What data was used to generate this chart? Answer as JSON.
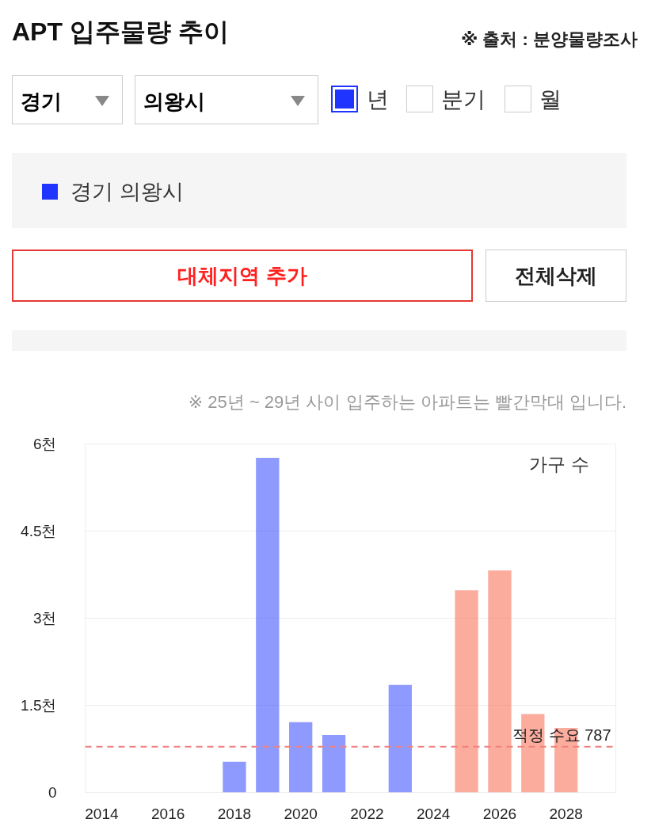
{
  "chart_data": {
    "type": "bar",
    "title": "APT 입주물량 추이",
    "annotations": [
      "※ 출처 : 분양물량조사",
      "경기",
      "의왕시",
      "년",
      "분기",
      "월",
      "대체지역 추가",
      "전체삭제",
      "※ 25년 ~ 29년 사이 입주하는 아파트는 빨간막대 입니다.",
      "가구 수"
    ],
    "series": [
      {
        "name": "경기 의왕시",
        "color": "#1f35ff",
        "x": [
          2018,
          2019,
          2020,
          2021,
          2023,
          2025,
          2026,
          2027,
          2028
        ],
        "values": [
          0.53,
          5.76,
          1.21,
          0.99,
          1.85,
          3.48,
          3.82,
          1.35,
          1.11
        ],
        "colors": [
          "#1f35ff",
          "#1f35ff",
          "#1f35ff",
          "#1f35ff",
          "#1f35ff",
          "#fa5a3c",
          "#fa5a3c",
          "#fa5a3c",
          "#fa5a3c"
        ]
      }
    ],
    "xlim": [
      2013.5,
      2029.5
    ],
    "xticks": [
      2014,
      2016,
      2018,
      2020,
      2022,
      2024,
      2026,
      2028
    ],
    "ylim": [
      0,
      6
    ],
    "yticks": [
      0,
      {
        "value": 1.5,
        "label": "1.5천"
      },
      {
        "value": 3,
        "label": "3천"
      },
      {
        "value": 4.5,
        "label": "4.5천"
      },
      {
        "value": 6,
        "label": "6천"
      }
    ],
    "ref_lines": [
      {
        "axis": "y",
        "value": 0.787,
        "label": "적정 수요 787",
        "color": "#f08080",
        "line_style": "dashed"
      }
    ],
    "grid": "y",
    "legend": "top"
  }
}
